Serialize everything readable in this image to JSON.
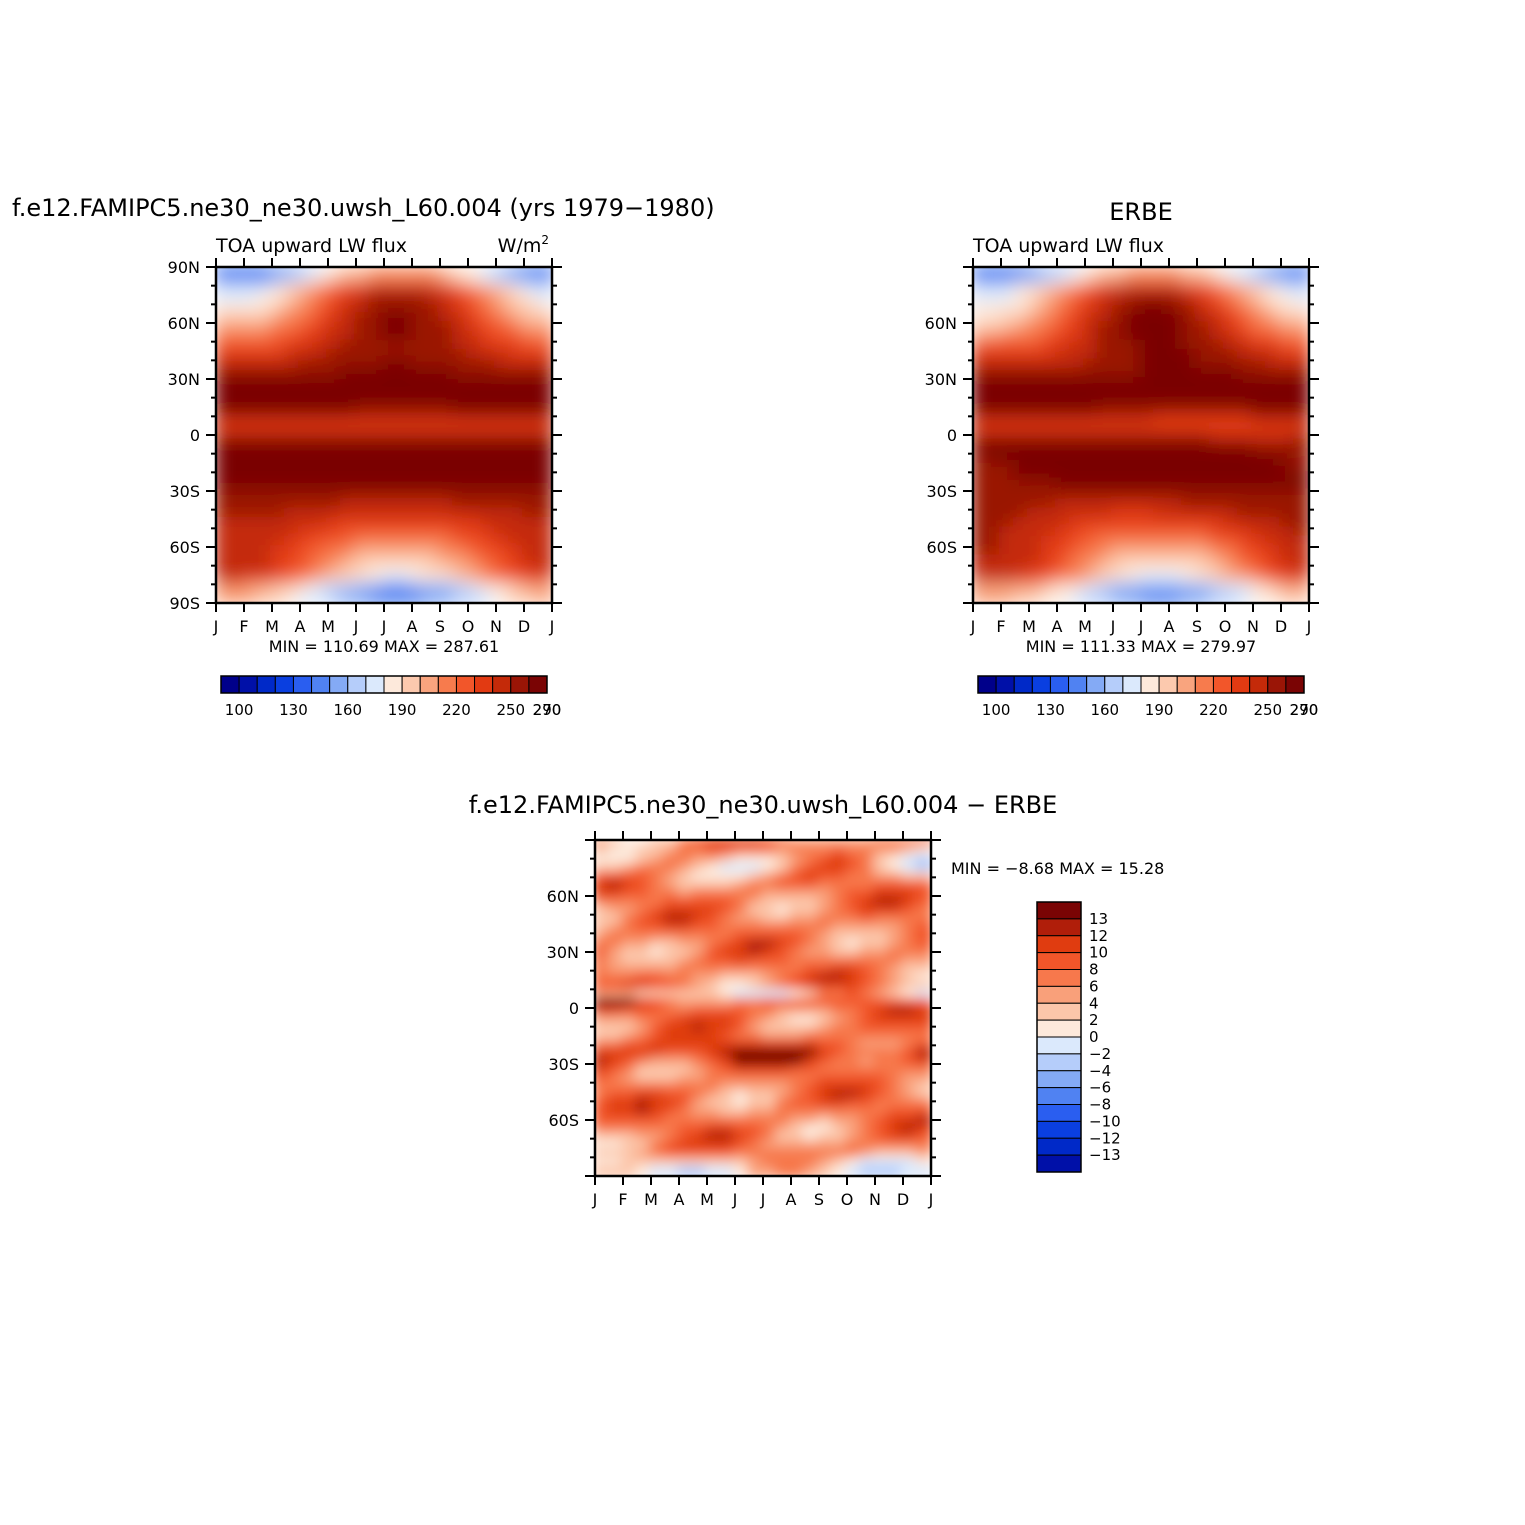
{
  "top_left_title": "f.e12.FAMIPC5.ne30_ne30.uwsh_L60.004 (yrs 1979−1980)",
  "top_right_title": "ERBE",
  "bottom_title": "f.e12.FAMIPC5.ne30_ne30.uwsh_L60.004 − ERBE",
  "chart_data": [
    {
      "type": "heatmap",
      "subtitle_left": "TOA upward LW flux",
      "subtitle_right": "W/m",
      "subtitle_right_sup": "2",
      "x_tick_labels": [
        "J",
        "F",
        "M",
        "A",
        "M",
        "J",
        "J",
        "A",
        "S",
        "O",
        "N",
        "D",
        "J"
      ],
      "y_tick_labels": [
        "90N",
        "60N",
        "30N",
        "0",
        "30S",
        "60S",
        "90S"
      ],
      "y_tick_values": [
        90,
        60,
        30,
        0,
        -30,
        -60,
        -90
      ],
      "ylim": [
        -90,
        90
      ],
      "stats": {
        "min_label": "MIN =",
        "min": "110.69",
        "max_label": "MAX =",
        "max": "287.61"
      },
      "colorbar_labels": [
        "100",
        "130",
        "160",
        "190",
        "220",
        "250",
        "270",
        "290"
      ],
      "colorbar_levels": [
        100,
        110,
        120,
        130,
        140,
        150,
        160,
        170,
        180,
        190,
        200,
        210,
        220,
        230,
        240,
        250,
        260,
        270,
        280,
        290
      ],
      "colorbar_colors": [
        "#00008a",
        "#0010a8",
        "#0029c8",
        "#0a3fe0",
        "#2a5ef0",
        "#5082f2",
        "#84aaf5",
        "#b5cdfa",
        "#dbe9fc",
        "#fde9db",
        "#fcc9ae",
        "#f9a47e",
        "#f77b4d",
        "#f2562a",
        "#e23a12",
        "#c42a09",
        "#9a1506",
        "#7a0404"
      ]
    },
    {
      "type": "heatmap",
      "subtitle_left": "TOA upward LW flux",
      "x_tick_labels": [
        "J",
        "F",
        "M",
        "A",
        "M",
        "J",
        "J",
        "A",
        "S",
        "O",
        "N",
        "D",
        "J"
      ],
      "y_tick_labels": [
        "60N",
        "30N",
        "0",
        "30S",
        "60S"
      ],
      "y_tick_values": [
        60,
        30,
        0,
        -30,
        -60
      ],
      "ylim": [
        -90,
        90
      ],
      "stats": {
        "min_label": "MIN =",
        "min": "111.33",
        "max_label": "MAX =",
        "max": "279.97"
      },
      "colorbar_labels": [
        "100",
        "130",
        "160",
        "190",
        "220",
        "250",
        "270",
        "290"
      ]
    },
    {
      "type": "heatmap",
      "x_tick_labels": [
        "J",
        "F",
        "M",
        "A",
        "M",
        "J",
        "J",
        "A",
        "S",
        "O",
        "N",
        "D",
        "J"
      ],
      "y_tick_labels": [
        "60N",
        "30N",
        "0",
        "30S",
        "60S"
      ],
      "y_tick_values": [
        60,
        30,
        0,
        -30,
        -60
      ],
      "ylim": [
        -90,
        90
      ],
      "stats": {
        "min_label": "MIN =",
        "min": "−8.68",
        "max_label": "MAX =",
        "max": "15.28"
      },
      "colorbar_labels": [
        "13",
        "12",
        "10",
        "8",
        "6",
        "4",
        "2",
        "0",
        "−2",
        "−4",
        "−6",
        "−8",
        "−10",
        "−12",
        "−13"
      ],
      "colorbar_colors": [
        "#7a0404",
        "#b01e0a",
        "#e03c10",
        "#f2562a",
        "#f7784c",
        "#f9a07a",
        "#fcc6aa",
        "#fde9db",
        "#dbe9fc",
        "#b5cdfa",
        "#84aaf5",
        "#5082f2",
        "#2a5ef0",
        "#0a3fe0",
        "#0029c8",
        "#0010a8"
      ]
    }
  ]
}
